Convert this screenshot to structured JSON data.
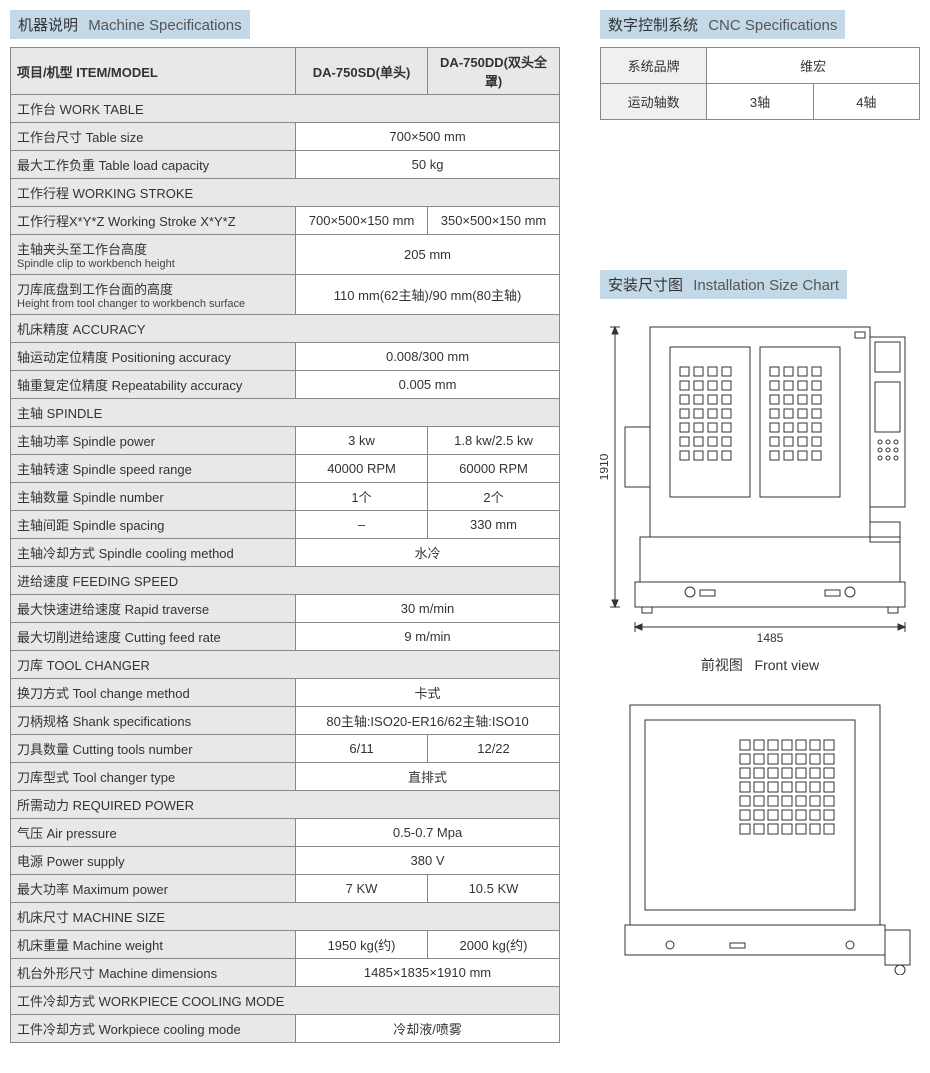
{
  "colors": {
    "header_bg": "#c3d9e8",
    "cell_gray": "#e8e8e8",
    "border": "#888888",
    "text": "#333333"
  },
  "machine_header": {
    "cn": "机器说明",
    "en": "Machine Specifications"
  },
  "cnc_header": {
    "cn": "数字控制系统",
    "en": "CNC Specifications"
  },
  "install_header": {
    "cn": "安装尺寸图",
    "en": "Installation Size Chart"
  },
  "spec_table": {
    "head": {
      "label": "项目/机型 ITEM/MODEL",
      "col1": "DA-750SD(单头)",
      "col2": "DA-750DD(双头全罩)"
    },
    "sections": [
      {
        "title": "工作台 WORK TABLE",
        "rows": [
          {
            "label": "工作台尺寸 Table size",
            "val": "700×500 mm",
            "span": 2
          },
          {
            "label": "最大工作负重 Table load capacity",
            "val": "50 kg",
            "span": 2
          }
        ]
      },
      {
        "title": "工作行程 WORKING STROKE",
        "rows": [
          {
            "label": "工作行程X*Y*Z  Working Stroke X*Y*Z",
            "v1": "700×500×150 mm",
            "v2": "350×500×150 mm"
          },
          {
            "label": "主轴夹头至工作台高度",
            "sub": "Spindle clip to workbench height",
            "val": "205 mm",
            "span": 2
          },
          {
            "label": "刀库底盘到工作台面的高度",
            "sub": "Height from tool changer to workbench surface",
            "val": "110 mm(62主轴)/90 mm(80主轴)",
            "span": 2
          }
        ]
      },
      {
        "title": "机床精度 ACCURACY",
        "rows": [
          {
            "label": "轴运动定位精度 Positioning accuracy",
            "val": "0.008/300 mm",
            "span": 2
          },
          {
            "label": "轴重复定位精度 Repeatability accuracy",
            "val": "0.005 mm",
            "span": 2
          }
        ]
      },
      {
        "title": "主轴 SPINDLE",
        "rows": [
          {
            "label": "主轴功率 Spindle power",
            "v1": "3 kw",
            "v2": "1.8 kw/2.5 kw"
          },
          {
            "label": "主轴转速 Spindle speed range",
            "v1": "40000 RPM",
            "v2": "60000 RPM"
          },
          {
            "label": "主轴数量 Spindle number",
            "v1": "1个",
            "v2": "2个"
          },
          {
            "label": "主轴间距 Spindle spacing",
            "v1": "–",
            "v2": "330 mm"
          },
          {
            "label": "主轴冷却方式 Spindle cooling method",
            "val": "水冷",
            "span": 2
          }
        ]
      },
      {
        "title": "进给速度 FEEDING SPEED",
        "rows": [
          {
            "label": "最大快速进给速度 Rapid traverse",
            "val": "30 m/min",
            "span": 2
          },
          {
            "label": "最大切削进给速度 Cutting feed rate",
            "val": "9 m/min",
            "span": 2
          }
        ]
      },
      {
        "title": "刀库 TOOL CHANGER",
        "rows": [
          {
            "label": "换刀方式 Tool change method",
            "val": "卡式",
            "span": 2
          },
          {
            "label": "刀柄规格 Shank specifications",
            "val": "80主轴:ISO20-ER16/62主轴:ISO10",
            "span": 2
          },
          {
            "label": "刀具数量 Cutting tools number",
            "v1": "6/11",
            "v2": "12/22"
          },
          {
            "label": "刀库型式 Tool changer type",
            "val": "直排式",
            "span": 2
          }
        ]
      },
      {
        "title": "所需动力 REQUIRED POWER",
        "rows": [
          {
            "label": "气压 Air pressure",
            "val": "0.5-0.7 Mpa",
            "span": 2
          },
          {
            "label": "电源 Power supply",
            "val": "380 V",
            "span": 2
          },
          {
            "label": "最大功率 Maximum power",
            "v1": "7 KW",
            "v2": "10.5 KW"
          }
        ]
      },
      {
        "title": "机床尺寸 MACHINE SIZE",
        "rows": [
          {
            "label": "机床重量 Machine weight",
            "v1": "1950 kg(约)",
            "v2": "2000 kg(约)"
          },
          {
            "label": "机台外形尺寸 Machine dimensions",
            "val": "1485×1835×1910 mm",
            "span": 2
          }
        ]
      },
      {
        "title": "工件冷却方式 WORKPIECE COOLING MODE",
        "rows": [
          {
            "label": "工件冷却方式 Workpiece cooling mode",
            "val": "冷却液/喷雾",
            "span": 2
          }
        ]
      }
    ]
  },
  "cnc_table": {
    "row1": {
      "label": "系统品牌",
      "val": "维宏"
    },
    "row2": {
      "label": "运动轴数",
      "v1": "3轴",
      "v2": "4轴"
    }
  },
  "front_view": {
    "caption_cn": "前视图",
    "caption_en": "Front view",
    "width_label": "1485",
    "height_label": "1910"
  }
}
